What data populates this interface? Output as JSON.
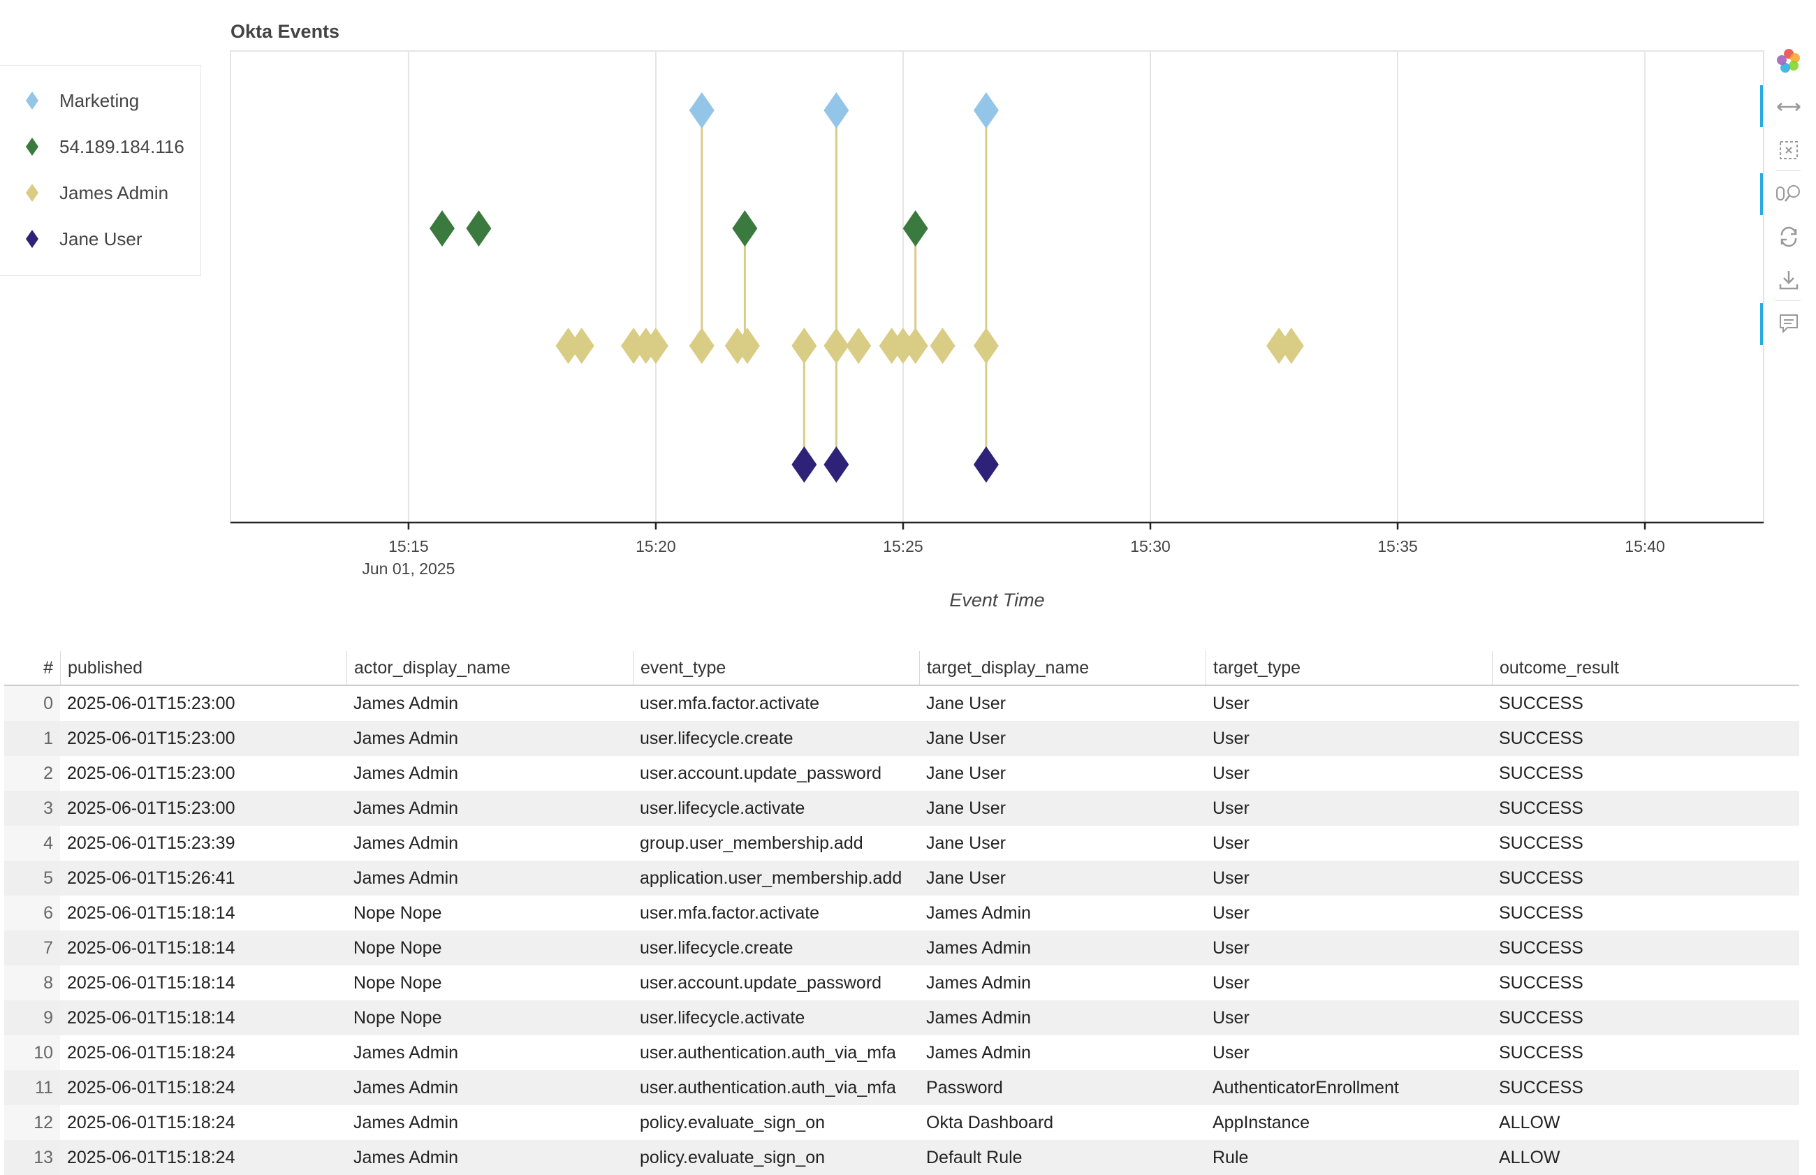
{
  "chart_data": {
    "type": "scatter",
    "title": "Okta Events",
    "xlabel": "Event Time",
    "ylabel": "",
    "x_unit": "minutes since 15:00 on Jun 01, 2025",
    "xlim": [
      11.4,
      42.4
    ],
    "x_ticks": [
      {
        "value": 15,
        "label": "15:15",
        "sublabel": "Jun 01, 2025"
      },
      {
        "value": 20,
        "label": "15:20",
        "sublabel": ""
      },
      {
        "value": 25,
        "label": "15:25",
        "sublabel": ""
      },
      {
        "value": 30,
        "label": "15:30",
        "sublabel": ""
      },
      {
        "value": 35,
        "label": "15:35",
        "sublabel": ""
      },
      {
        "value": 40,
        "label": "15:40",
        "sublabel": ""
      }
    ],
    "lanes": [
      "Marketing",
      "54.189.184.116",
      "James Admin",
      "Jane User"
    ],
    "series": [
      {
        "name": "Marketing",
        "color": "#92c5e8",
        "lane": 0,
        "x": [
          20.93,
          23.65,
          26.68
        ]
      },
      {
        "name": "54.189.184.116",
        "color": "#3a7a3f",
        "lane": 1,
        "x": [
          15.68,
          16.42,
          21.8,
          25.25
        ]
      },
      {
        "name": "James Admin",
        "color": "#d9cc85",
        "lane": 2,
        "x": [
          18.23,
          18.5,
          19.55,
          19.8,
          20.0,
          20.93,
          21.65,
          21.85,
          23.0,
          23.65,
          24.1,
          24.77,
          25.0,
          25.25,
          25.8,
          26.68,
          32.6,
          32.85
        ]
      },
      {
        "name": "Jane User",
        "color": "#2e2278",
        "lane": 3,
        "x": [
          23.0,
          23.65,
          26.68
        ]
      }
    ],
    "links": [
      {
        "x": 20.93,
        "from_lane": 2,
        "to_lane": 0
      },
      {
        "x": 23.65,
        "from_lane": 2,
        "to_lane": 0
      },
      {
        "x": 26.68,
        "from_lane": 2,
        "to_lane": 0
      },
      {
        "x": 21.8,
        "from_lane": 2,
        "to_lane": 1
      },
      {
        "x": 25.25,
        "from_lane": 2,
        "to_lane": 1
      },
      {
        "x": 23.0,
        "from_lane": 2,
        "to_lane": 3
      },
      {
        "x": 23.65,
        "from_lane": 2,
        "to_lane": 3
      },
      {
        "x": 26.68,
        "from_lane": 2,
        "to_lane": 3
      }
    ],
    "link_color": "#d9cc85",
    "grid": true,
    "legend_position": "left"
  },
  "toolbar": {
    "tools": [
      "bokeh-logo",
      "xpan-tool",
      "box-zoom-tool",
      "wheel-zoom-tool",
      "reset-tool",
      "save-tool",
      "hover-tool"
    ]
  },
  "table": {
    "columns": [
      "#",
      "published",
      "actor_display_name",
      "event_type",
      "target_display_name",
      "target_type",
      "outcome_result"
    ],
    "rows": [
      [
        "0",
        "2025-06-01T15:23:00",
        "James Admin",
        "user.mfa.factor.activate",
        "Jane User",
        "User",
        "SUCCESS"
      ],
      [
        "1",
        "2025-06-01T15:23:00",
        "James Admin",
        "user.lifecycle.create",
        "Jane User",
        "User",
        "SUCCESS"
      ],
      [
        "2",
        "2025-06-01T15:23:00",
        "James Admin",
        "user.account.update_password",
        "Jane User",
        "User",
        "SUCCESS"
      ],
      [
        "3",
        "2025-06-01T15:23:00",
        "James Admin",
        "user.lifecycle.activate",
        "Jane User",
        "User",
        "SUCCESS"
      ],
      [
        "4",
        "2025-06-01T15:23:39",
        "James Admin",
        "group.user_membership.add",
        "Jane User",
        "User",
        "SUCCESS"
      ],
      [
        "5",
        "2025-06-01T15:26:41",
        "James Admin",
        "application.user_membership.add",
        "Jane User",
        "User",
        "SUCCESS"
      ],
      [
        "6",
        "2025-06-01T15:18:14",
        "Nope Nope",
        "user.mfa.factor.activate",
        "James Admin",
        "User",
        "SUCCESS"
      ],
      [
        "7",
        "2025-06-01T15:18:14",
        "Nope Nope",
        "user.lifecycle.create",
        "James Admin",
        "User",
        "SUCCESS"
      ],
      [
        "8",
        "2025-06-01T15:18:14",
        "Nope Nope",
        "user.account.update_password",
        "James Admin",
        "User",
        "SUCCESS"
      ],
      [
        "9",
        "2025-06-01T15:18:14",
        "Nope Nope",
        "user.lifecycle.activate",
        "James Admin",
        "User",
        "SUCCESS"
      ],
      [
        "10",
        "2025-06-01T15:18:24",
        "James Admin",
        "user.authentication.auth_via_mfa",
        "James Admin",
        "User",
        "SUCCESS"
      ],
      [
        "11",
        "2025-06-01T15:18:24",
        "James Admin",
        "user.authentication.auth_via_mfa",
        "Password",
        "AuthenticatorEnrollment",
        "SUCCESS"
      ],
      [
        "12",
        "2025-06-01T15:18:24",
        "James Admin",
        "policy.evaluate_sign_on",
        "Okta Dashboard",
        "AppInstance",
        "ALLOW"
      ],
      [
        "13",
        "2025-06-01T15:18:24",
        "James Admin",
        "policy.evaluate_sign_on",
        "Default Rule",
        "Rule",
        "ALLOW"
      ]
    ]
  }
}
